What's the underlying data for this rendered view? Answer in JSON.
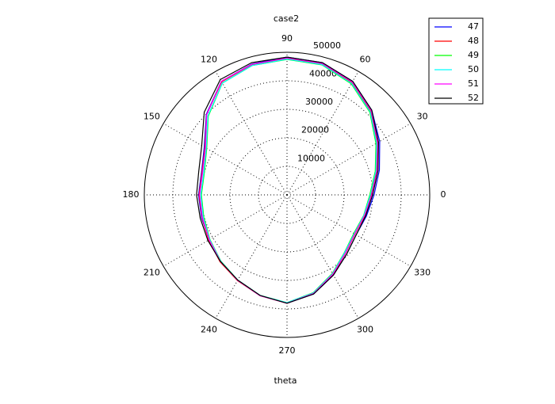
{
  "chart_data": {
    "type": "polar",
    "title": "case2",
    "x_label": "theta",
    "theta": [
      0,
      15,
      30,
      45,
      60,
      75,
      90,
      105,
      120,
      135,
      150,
      165,
      180,
      195,
      210,
      225,
      240,
      255,
      270,
      285,
      300,
      315,
      330,
      345
    ],
    "rlim": [
      0,
      50000
    ],
    "rticks": [
      10000,
      20000,
      30000,
      40000,
      50000
    ],
    "thetaticks": [
      0,
      30,
      60,
      90,
      120,
      150,
      180,
      210,
      240,
      270,
      300,
      330
    ],
    "grid": true,
    "legend": "top-right",
    "series": [
      {
        "name": "47",
        "color": "#0000ff",
        "values": [
          30500,
          33500,
          37500,
          42000,
          46000,
          48000,
          48300,
          47500,
          46000,
          40000,
          33500,
          31000,
          31000,
          31000,
          31500,
          33000,
          34500,
          36500,
          38000,
          36000,
          32500,
          29500,
          28000,
          28800
        ]
      },
      {
        "name": "48",
        "color": "#ff0000",
        "values": [
          29500,
          32500,
          36500,
          41500,
          45500,
          47500,
          47800,
          47300,
          45800,
          39800,
          33200,
          30800,
          30800,
          30800,
          31700,
          33200,
          34700,
          36600,
          38000,
          35800,
          32200,
          29000,
          27500,
          28200
        ]
      },
      {
        "name": "49",
        "color": "#00ff00",
        "values": [
          29000,
          32000,
          36000,
          41000,
          45000,
          47200,
          47500,
          47000,
          45300,
          39000,
          32500,
          30000,
          30000,
          30200,
          31200,
          32800,
          34500,
          36500,
          37800,
          35500,
          31800,
          28500,
          27000,
          27800
        ]
      },
      {
        "name": "50",
        "color": "#00ffff",
        "values": [
          29200,
          32200,
          36200,
          41200,
          45200,
          47300,
          47600,
          47000,
          45300,
          39200,
          32700,
          30200,
          30200,
          30400,
          31300,
          32900,
          34500,
          36500,
          37800,
          35600,
          31900,
          28600,
          27200,
          27900
        ]
      },
      {
        "name": "51",
        "color": "#ff00ff",
        "values": [
          29700,
          32700,
          36700,
          41700,
          45700,
          47700,
          48000,
          47400,
          46000,
          39800,
          33000,
          30600,
          30600,
          30700,
          31500,
          33000,
          34600,
          36600,
          38000,
          35800,
          32100,
          28900,
          27400,
          28100
        ]
      },
      {
        "name": "52",
        "color": "#000000",
        "values": [
          30000,
          33000,
          37000,
          42000,
          46000,
          48000,
          48300,
          48000,
          46700,
          41000,
          34500,
          32000,
          31700,
          31500,
          32000,
          33000,
          34500,
          36500,
          38000,
          36000,
          32500,
          29500,
          28000,
          28500
        ]
      }
    ]
  }
}
